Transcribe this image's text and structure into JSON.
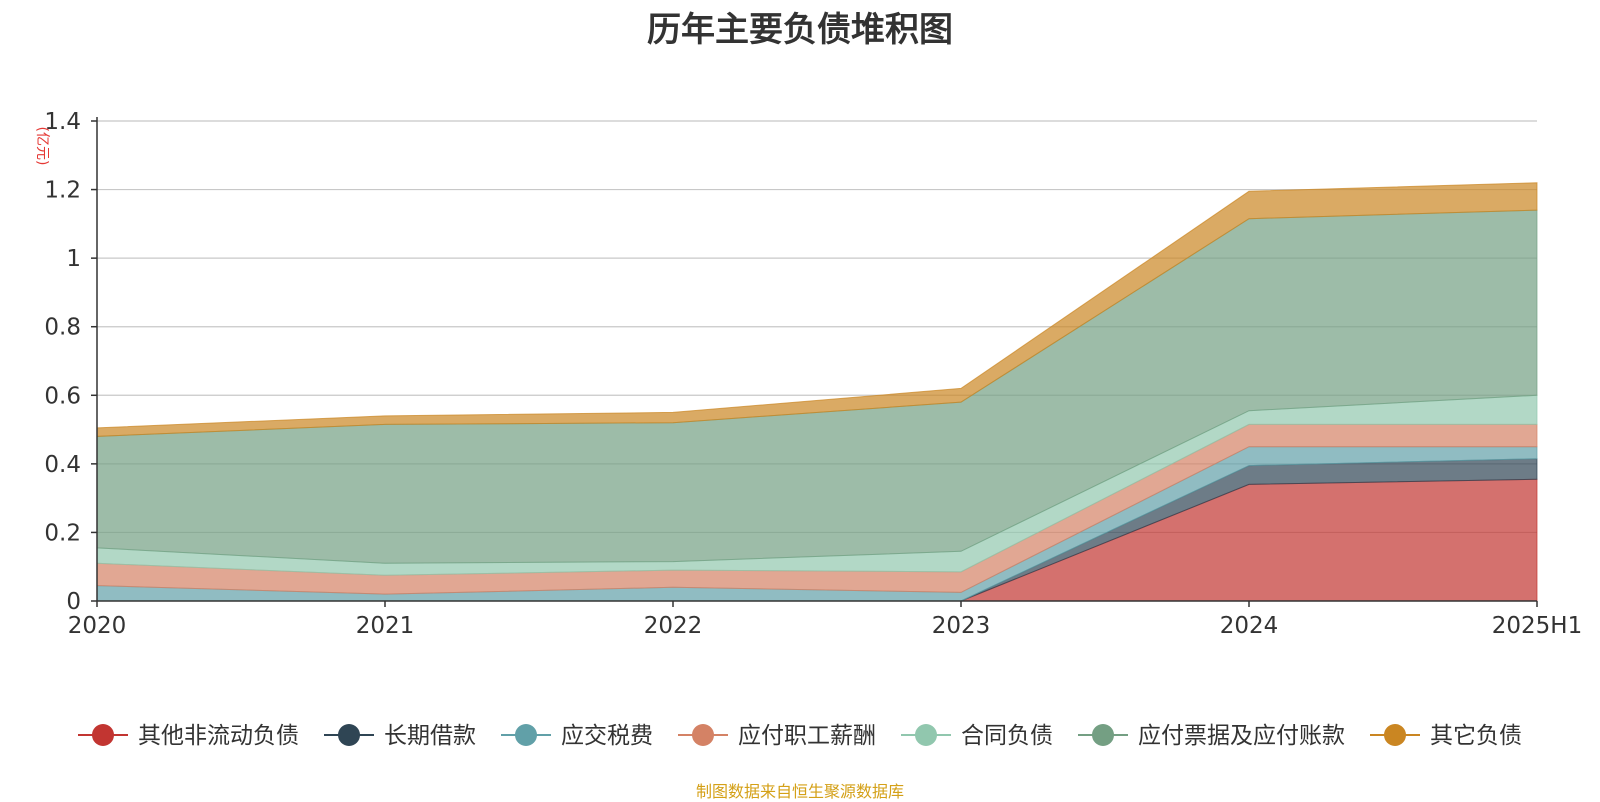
{
  "chart_data": {
    "type": "area",
    "stacked": true,
    "title": "历年主要负债堆积图",
    "unit": "(亿元)",
    "categories": [
      "2020",
      "2021",
      "2022",
      "2023",
      "2024",
      "2025H1"
    ],
    "ylim": [
      0,
      1.4
    ],
    "yticks": [
      "0",
      "0.2",
      "0.4",
      "0.6",
      "0.8",
      "1",
      "1.2",
      "1.4"
    ],
    "grid": true,
    "legend_position": "bottom",
    "series": [
      {
        "name": "其他非流动负债",
        "color": "#c23531",
        "values": [
          0,
          0,
          0,
          0,
          0.34,
          0.355
        ]
      },
      {
        "name": "长期借款",
        "color": "#2f4554",
        "values": [
          0,
          0,
          0,
          0,
          0.055,
          0.06
        ]
      },
      {
        "name": "应交税费",
        "color": "#61a0a8",
        "values": [
          0.045,
          0.02,
          0.04,
          0.025,
          0.055,
          0.035
        ]
      },
      {
        "name": "应付职工薪酬",
        "color": "#d48265",
        "values": [
          0.065,
          0.055,
          0.05,
          0.06,
          0.065,
          0.065
        ]
      },
      {
        "name": "合同负债",
        "color": "#91c7ae",
        "values": [
          0.045,
          0.035,
          0.025,
          0.06,
          0.04,
          0.085
        ]
      },
      {
        "name": "应付票据及应付账款",
        "color": "#749f83",
        "values": [
          0.325,
          0.405,
          0.405,
          0.435,
          0.56,
          0.54
        ]
      },
      {
        "name": "其它负债",
        "color": "#ca8622",
        "values": [
          0.025,
          0.025,
          0.03,
          0.04,
          0.08,
          0.08
        ]
      }
    ]
  },
  "source_note": "制图数据来自恒生聚源数据库"
}
